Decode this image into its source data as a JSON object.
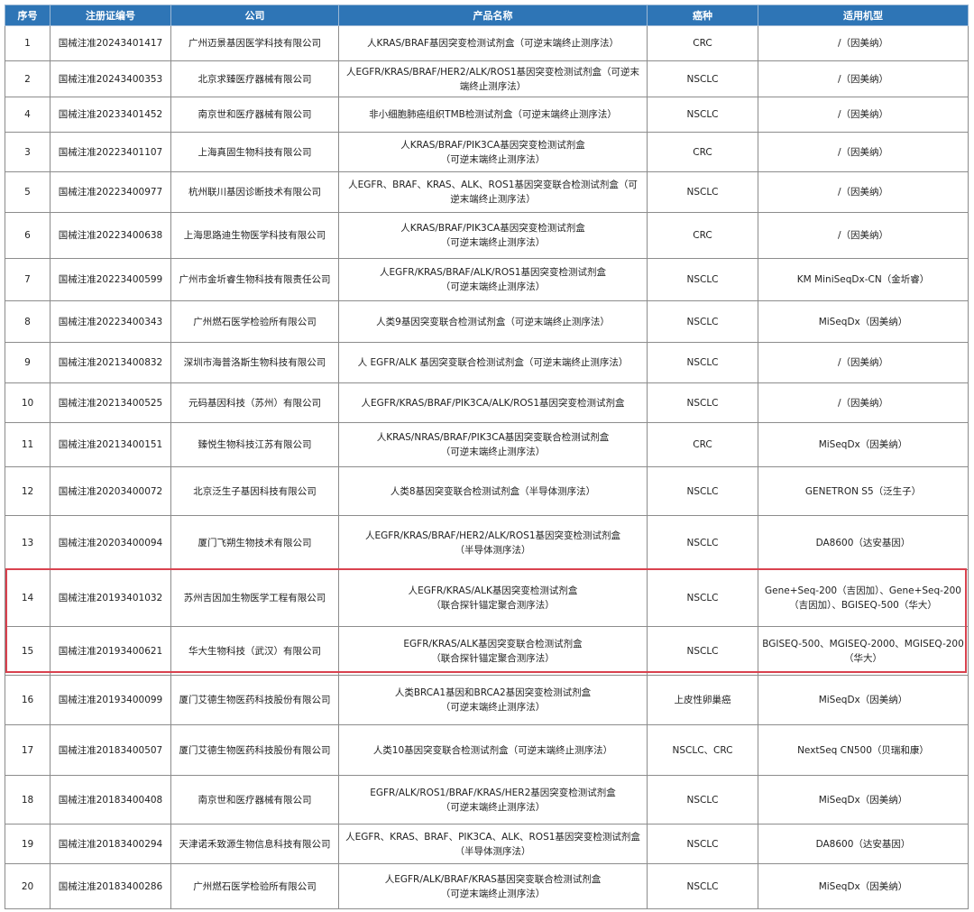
{
  "columns": [
    "序号",
    "注册证编号",
    "公司",
    "产品名称",
    "癌种",
    "适用机型"
  ],
  "rows": [
    {
      "no": "1",
      "reg": "国械注准20243401417",
      "company": "广州迈景基因医学科技有限公司",
      "product": "人KRAS/BRAF基因突变检测试剂盒（可逆末端终止测序法）",
      "cancer": "CRC",
      "platform": "/（因美纳）"
    },
    {
      "no": "2",
      "reg": "国械注准20243400353",
      "company": "北京求臻医疗器械有限公司",
      "product": "人EGFR/KRAS/BRAF/HER2/ALK/ROS1基因突变检测试剂盒（可逆末\n端终止测序法）",
      "cancer": "NSCLC",
      "platform": "/（因美纳）"
    },
    {
      "no": "4",
      "reg": "国械注准20233401452",
      "company": "南京世和医疗器械有限公司",
      "product": "非小细胞肺癌组织TMB检测试剂盒（可逆末端终止测序法）",
      "cancer": "NSCLC",
      "platform": "/（因美纳）"
    },
    {
      "no": "3",
      "reg": "国械注准20223401107",
      "company": "上海真固生物科技有限公司",
      "product": "人KRAS/BRAF/PIK3CA基因突变检测试剂盒\n（可逆末端终止测序法）",
      "cancer": "CRC",
      "platform": "/（因美纳）"
    },
    {
      "no": "5",
      "reg": "国械注准20223400977",
      "company": "杭州联川基因诊断技术有限公司",
      "product": "人EGFR、BRAF、KRAS、ALK、ROS1基因突变联合检测试剂盒（可\n逆末端终止测序法）",
      "cancer": "NSCLC",
      "platform": "/（因美纳）"
    },
    {
      "no": "6",
      "reg": "国械注准20223400638",
      "company": "上海思路迪生物医学科技有限公司",
      "product": "人KRAS/BRAF/PIK3CA基因突变检测试剂盒\n（可逆末端终止测序法）",
      "cancer": "CRC",
      "platform": "/（因美纳）"
    },
    {
      "no": "7",
      "reg": "国械注准20223400599",
      "company": "广州市金圻睿生物科技有限责任公司",
      "product": "人EGFR/KRAS/BRAF/ALK/ROS1基因突变检测试剂盒\n（可逆末端终止测序法）",
      "cancer": "NSCLC",
      "platform": "KM MiniSeqDx-CN（金圻睿）"
    },
    {
      "no": "8",
      "reg": "国械注准20223400343",
      "company": "广州燃石医学检验所有限公司",
      "product": "人类9基因突变联合检测试剂盒（可逆末端终止测序法）",
      "cancer": "NSCLC",
      "platform": "MiSeqDx（因美纳）"
    },
    {
      "no": "9",
      "reg": "国械注准20213400832",
      "company": "深圳市海普洛斯生物科技有限公司",
      "product": "人 EGFR/ALK 基因突变联合检测试剂盒（可逆末端终止测序法）",
      "cancer": "NSCLC",
      "platform": "/（因美纳）"
    },
    {
      "no": "10",
      "reg": "国械注准20213400525",
      "company": "元码基因科技（苏州）有限公司",
      "product": "人EGFR/KRAS/BRAF/PIK3CA/ALK/ROS1基因突变检测试剂盒",
      "cancer": "NSCLC",
      "platform": "/（因美纳）"
    },
    {
      "no": "11",
      "reg": "国械注准20213400151",
      "company": "臻悦生物科技江苏有限公司",
      "product": "人KRAS/NRAS/BRAF/PIK3CA基因突变联合检测试剂盒\n（可逆末端终止测序法）",
      "cancer": "CRC",
      "platform": "MiSeqDx（因美纳）"
    },
    {
      "no": "12",
      "reg": "国械注准20203400072",
      "company": "北京泛生子基因科技有限公司",
      "product": "人类8基因突变联合检测试剂盒（半导体测序法）",
      "cancer": "NSCLC",
      "platform": "GENETRON S5（泛生子）"
    },
    {
      "no": "13",
      "reg": "国械注准20203400094",
      "company": "厦门飞朔生物技术有限公司",
      "product": "人EGFR/KRAS/BRAF/HER2/ALK/ROS1基因突变检测试剂盒\n（半导体测序法）",
      "cancer": "NSCLC",
      "platform": "DA8600（达安基因）"
    },
    {
      "no": "14",
      "reg": "国械注准20193401032",
      "company": "苏州吉因加生物医学工程有限公司",
      "product": "人EGFR/KRAS/ALK基因突变检测试剂盒\n（联合探针锚定聚合测序法）",
      "cancer": "NSCLC",
      "platform": "Gene+Seq-200（吉因加）、Gene+Seq-200\n（吉因加）、BGISEQ-500（华大）",
      "highlighted": true
    },
    {
      "no": "15",
      "reg": "国械注准20193400621",
      "company": "华大生物科技（武汉）有限公司",
      "product": "EGFR/KRAS/ALK基因突变联合检测试剂盒\n（联合探针锚定聚合测序法）",
      "cancer": "NSCLC",
      "platform": "BGISEQ-500、MGISEQ-2000、MGISEQ-200\n（华大）",
      "highlighted": true
    },
    {
      "no": "16",
      "reg": "国械注准20193400099",
      "company": "厦门艾德生物医药科技股份有限公司",
      "product": "人类BRCA1基因和BRCA2基因突变检测试剂盒\n（可逆末端终止测序法）",
      "cancer": "上皮性卵巢癌",
      "platform": "MiSeqDx（因美纳）"
    },
    {
      "no": "17",
      "reg": "国械注准20183400507",
      "company": "厦门艾德生物医药科技股份有限公司",
      "product": "人类10基因突变联合检测试剂盒（可逆末端终止测序法）",
      "cancer": "NSCLC、CRC",
      "platform": "NextSeq CN500（贝瑞和康）"
    },
    {
      "no": "18",
      "reg": "国械注准20183400408",
      "company": "南京世和医疗器械有限公司",
      "product": "EGFR/ALK/ROS1/BRAF/KRAS/HER2基因突变检测试剂盒\n（可逆末端终止测序法）",
      "cancer": "NSCLC",
      "platform": "MiSeqDx（因美纳）"
    },
    {
      "no": "19",
      "reg": "国械注准20183400294",
      "company": "天津诺禾致源生物信息科技有限公司",
      "product": "人EGFR、KRAS、BRAF、PIK3CA、ALK、ROS1基因突变检测试剂盒\n（半导体测序法）",
      "cancer": "NSCLC",
      "platform": "DA8600（达安基因）"
    },
    {
      "no": "20",
      "reg": "国械注准20183400286",
      "company": "广州燃石医学检验所有限公司",
      "product": "人EGFR/ALK/BRAF/KRAS基因突变联合检测试剂盒\n（可逆末端终止测序法）",
      "cancer": "NSCLC",
      "platform": "MiSeqDx（因美纳）"
    }
  ],
  "colors": {
    "header_bg": "#2e75b6",
    "header_text": "#ffffff",
    "highlight_border": "#d9424f"
  }
}
